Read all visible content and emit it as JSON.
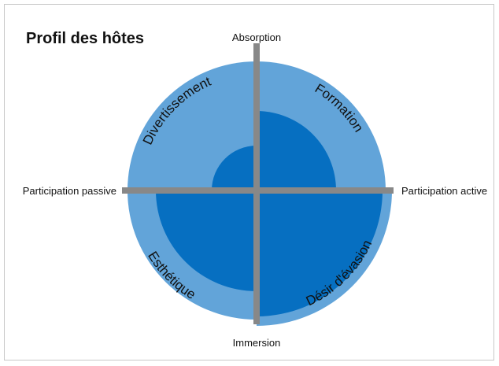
{
  "title": "Profil des hôtes",
  "axes": {
    "top": "Absorption",
    "bottom": "Immersion",
    "left": "Participation passive",
    "right": "Participation active"
  },
  "quadrants": [
    {
      "label": "Divertissement"
    },
    {
      "label": "Formation"
    },
    {
      "label": "Esthétique"
    },
    {
      "label": "Désir d'évasion"
    }
  ]
}
